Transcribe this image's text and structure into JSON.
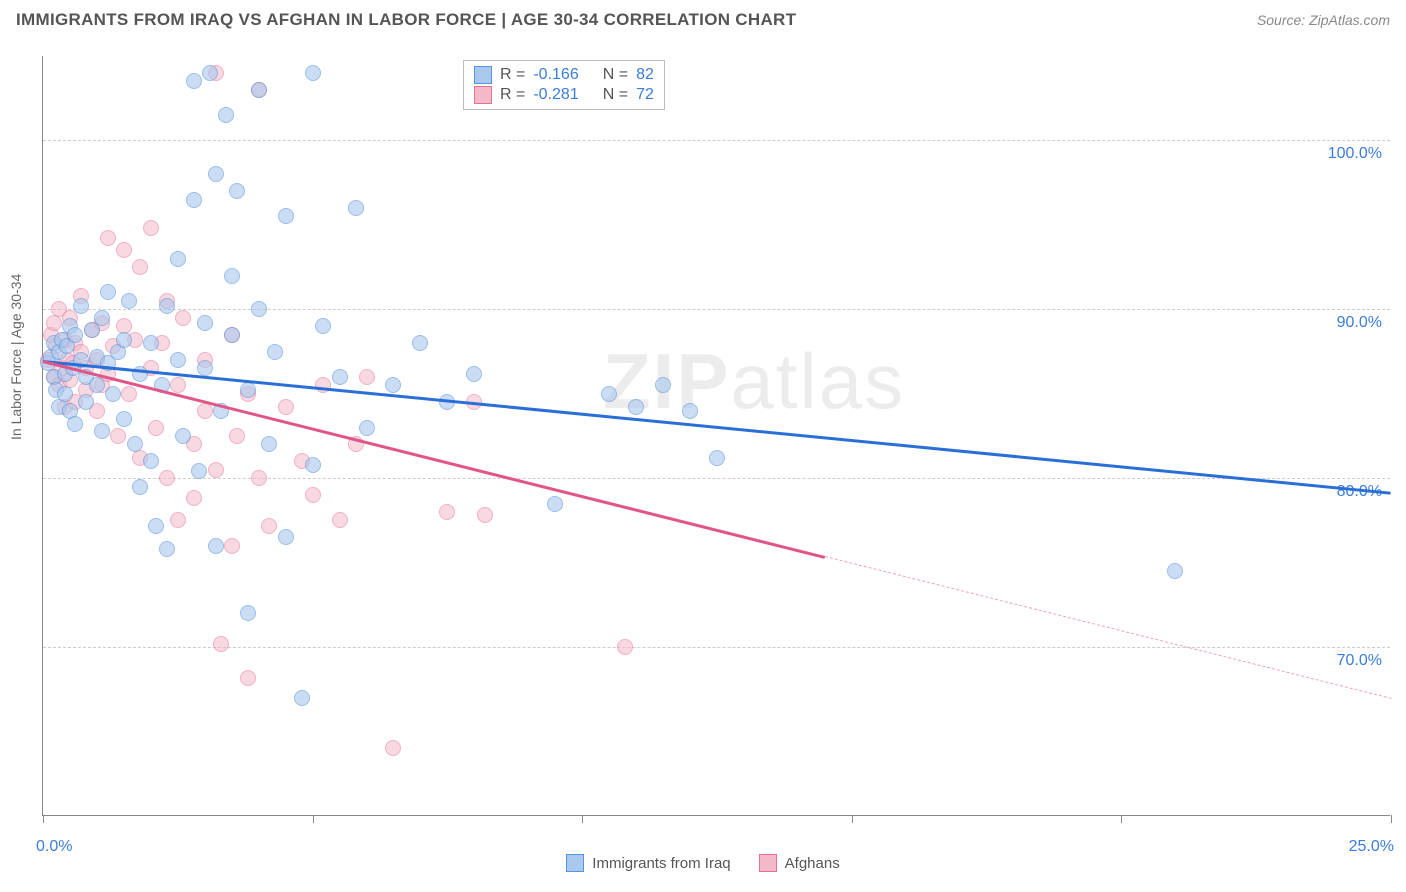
{
  "page": {
    "title": "IMMIGRANTS FROM IRAQ VS AFGHAN IN LABOR FORCE | AGE 30-34 CORRELATION CHART",
    "source": "Source: ZipAtlas.com",
    "watermark_a": "ZIP",
    "watermark_b": "atlas"
  },
  "chart": {
    "type": "scatter",
    "y_axis_title": "In Labor Force | Age 30-34",
    "xlim": [
      0,
      25
    ],
    "ylim": [
      60,
      105
    ],
    "x_ticks": [
      0,
      5,
      10,
      15,
      20,
      25
    ],
    "x_tick_labels": {
      "0": "0.0%",
      "25": "25.0%"
    },
    "y_grid": [
      70,
      80,
      90,
      100
    ],
    "y_tick_labels": {
      "70": "70.0%",
      "80": "80.0%",
      "90": "90.0%",
      "100": "100.0%"
    },
    "grid_color": "#cccccc",
    "axis_color": "#888888",
    "background_color": "#ffffff",
    "marker_radius": 8,
    "marker_stroke_width": 1.5,
    "series": [
      {
        "name": "Immigrants from Iraq",
        "fill": "#a9c8ee",
        "stroke": "#5a93d8",
        "fill_opacity": 0.6,
        "R": "-0.166",
        "N": "82",
        "trend": {
          "x1": 0,
          "y1": 87.0,
          "x2": 25,
          "y2": 79.2,
          "color": "#2a6fd6",
          "width": 3,
          "solid_until_x": 25
        },
        "points": [
          [
            0.1,
            86.8
          ],
          [
            0.15,
            87.2
          ],
          [
            0.2,
            86.0
          ],
          [
            0.2,
            88.0
          ],
          [
            0.25,
            85.2
          ],
          [
            0.3,
            87.5
          ],
          [
            0.3,
            84.2
          ],
          [
            0.35,
            88.2
          ],
          [
            0.4,
            86.2
          ],
          [
            0.4,
            85.0
          ],
          [
            0.45,
            87.8
          ],
          [
            0.5,
            89.0
          ],
          [
            0.5,
            84.0
          ],
          [
            0.55,
            86.5
          ],
          [
            0.6,
            88.5
          ],
          [
            0.6,
            83.2
          ],
          [
            0.7,
            87.0
          ],
          [
            0.7,
            90.2
          ],
          [
            0.8,
            86.0
          ],
          [
            0.8,
            84.5
          ],
          [
            0.9,
            88.8
          ],
          [
            1.0,
            87.2
          ],
          [
            1.0,
            85.5
          ],
          [
            1.1,
            89.5
          ],
          [
            1.1,
            82.8
          ],
          [
            1.2,
            86.8
          ],
          [
            1.2,
            91.0
          ],
          [
            1.3,
            85.0
          ],
          [
            1.4,
            87.5
          ],
          [
            1.5,
            83.5
          ],
          [
            1.5,
            88.2
          ],
          [
            1.6,
            90.5
          ],
          [
            1.7,
            82.0
          ],
          [
            1.8,
            86.2
          ],
          [
            1.8,
            79.5
          ],
          [
            2.0,
            88.0
          ],
          [
            2.0,
            81.0
          ],
          [
            2.1,
            77.2
          ],
          [
            2.2,
            85.5
          ],
          [
            2.3,
            90.2
          ],
          [
            2.3,
            75.8
          ],
          [
            2.5,
            87.0
          ],
          [
            2.5,
            93.0
          ],
          [
            2.6,
            82.5
          ],
          [
            2.8,
            96.5
          ],
          [
            2.8,
            103.5
          ],
          [
            2.9,
            80.4
          ],
          [
            3.0,
            86.5
          ],
          [
            3.0,
            89.2
          ],
          [
            3.1,
            104.0
          ],
          [
            3.2,
            76.0
          ],
          [
            3.2,
            98.0
          ],
          [
            3.3,
            84.0
          ],
          [
            3.4,
            101.5
          ],
          [
            3.5,
            88.5
          ],
          [
            3.5,
            92.0
          ],
          [
            3.6,
            97.0
          ],
          [
            3.8,
            85.2
          ],
          [
            3.8,
            72.0
          ],
          [
            4.0,
            90.0
          ],
          [
            4.0,
            103.0
          ],
          [
            4.2,
            82.0
          ],
          [
            4.3,
            87.5
          ],
          [
            4.5,
            95.5
          ],
          [
            4.5,
            76.5
          ],
          [
            4.8,
            67.0
          ],
          [
            5.0,
            80.8
          ],
          [
            5.0,
            104.0
          ],
          [
            5.2,
            89.0
          ],
          [
            5.5,
            86.0
          ],
          [
            5.8,
            96.0
          ],
          [
            6.0,
            83.0
          ],
          [
            6.5,
            85.5
          ],
          [
            7.0,
            88.0
          ],
          [
            7.5,
            84.5
          ],
          [
            8.0,
            86.2
          ],
          [
            9.5,
            78.5
          ],
          [
            10.5,
            85.0
          ],
          [
            11.0,
            84.2
          ],
          [
            11.5,
            85.5
          ],
          [
            12.0,
            84.0
          ],
          [
            12.5,
            81.2
          ],
          [
            21.0,
            74.5
          ]
        ]
      },
      {
        "name": "Afghans",
        "fill": "#f4b9c9",
        "stroke": "#e77099",
        "fill_opacity": 0.55,
        "R": "-0.281",
        "N": "72",
        "trend": {
          "x1": 0,
          "y1": 87.0,
          "x2": 25,
          "y2": 67.0,
          "color": "#e05688",
          "width": 2.5,
          "solid_until_x": 14.5
        },
        "points": [
          [
            0.1,
            87.0
          ],
          [
            0.15,
            88.5
          ],
          [
            0.2,
            86.0
          ],
          [
            0.2,
            89.2
          ],
          [
            0.25,
            87.8
          ],
          [
            0.3,
            85.5
          ],
          [
            0.3,
            90.0
          ],
          [
            0.35,
            86.5
          ],
          [
            0.4,
            88.2
          ],
          [
            0.4,
            84.2
          ],
          [
            0.45,
            87.0
          ],
          [
            0.5,
            89.5
          ],
          [
            0.5,
            85.8
          ],
          [
            0.55,
            86.8
          ],
          [
            0.6,
            88.0
          ],
          [
            0.6,
            84.5
          ],
          [
            0.7,
            87.5
          ],
          [
            0.7,
            90.8
          ],
          [
            0.8,
            85.2
          ],
          [
            0.8,
            86.5
          ],
          [
            0.9,
            88.8
          ],
          [
            1.0,
            87.0
          ],
          [
            1.0,
            84.0
          ],
          [
            1.1,
            89.2
          ],
          [
            1.1,
            85.5
          ],
          [
            1.2,
            86.2
          ],
          [
            1.2,
            94.2
          ],
          [
            1.3,
            87.8
          ],
          [
            1.4,
            82.5
          ],
          [
            1.5,
            89.0
          ],
          [
            1.5,
            93.5
          ],
          [
            1.6,
            85.0
          ],
          [
            1.7,
            88.2
          ],
          [
            1.8,
            81.2
          ],
          [
            1.8,
            92.5
          ],
          [
            2.0,
            86.5
          ],
          [
            2.0,
            94.8
          ],
          [
            2.1,
            83.0
          ],
          [
            2.2,
            88.0
          ],
          [
            2.3,
            80.0
          ],
          [
            2.3,
            90.5
          ],
          [
            2.5,
            85.5
          ],
          [
            2.5,
            77.5
          ],
          [
            2.6,
            89.5
          ],
          [
            2.8,
            82.0
          ],
          [
            2.8,
            78.8
          ],
          [
            3.0,
            87.0
          ],
          [
            3.0,
            84.0
          ],
          [
            3.2,
            80.5
          ],
          [
            3.2,
            104.0
          ],
          [
            3.3,
            70.2
          ],
          [
            3.5,
            88.5
          ],
          [
            3.5,
            76.0
          ],
          [
            3.6,
            82.5
          ],
          [
            3.8,
            85.0
          ],
          [
            3.8,
            68.2
          ],
          [
            4.0,
            80.0
          ],
          [
            4.0,
            103.0
          ],
          [
            4.2,
            77.2
          ],
          [
            4.5,
            84.2
          ],
          [
            4.8,
            81.0
          ],
          [
            5.0,
            79.0
          ],
          [
            5.2,
            85.5
          ],
          [
            5.5,
            77.5
          ],
          [
            5.8,
            82.0
          ],
          [
            6.0,
            86.0
          ],
          [
            6.5,
            64.0
          ],
          [
            7.5,
            78.0
          ],
          [
            8.0,
            84.5
          ],
          [
            8.2,
            77.8
          ],
          [
            10.8,
            70.0
          ]
        ]
      }
    ]
  },
  "correlation_box": {
    "label_R": "R =",
    "label_N": "N ="
  },
  "legend": {
    "items": [
      "Immigrants from Iraq",
      "Afghans"
    ]
  }
}
